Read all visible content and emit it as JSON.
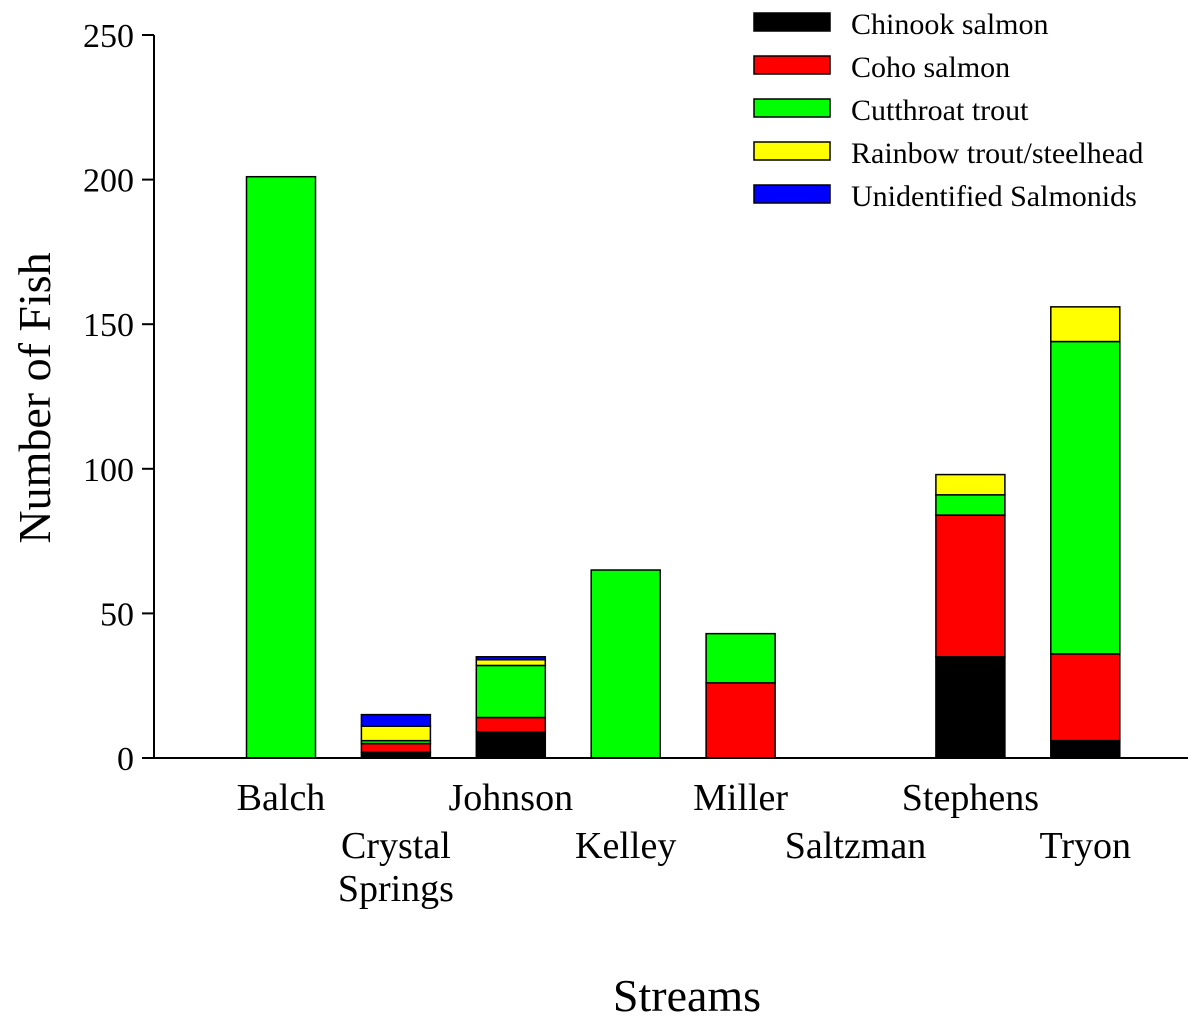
{
  "chart_data": {
    "type": "bar",
    "stacked": true,
    "xlabel": "Streams",
    "ylabel": "Number of Fish",
    "ylim": [
      0,
      250
    ],
    "yticks": [
      0,
      50,
      100,
      150,
      200,
      250
    ],
    "grid": false,
    "legend_position": "top-right",
    "categories": [
      "Balch",
      "Crystal Springs",
      "Johnson",
      "Kelley",
      "Miller",
      "Saltzman",
      "Stephens",
      "Tryon"
    ],
    "category_label_lines": [
      [
        "Balch"
      ],
      [
        "Crystal",
        "Springs"
      ],
      [
        "Johnson"
      ],
      [
        "Kelley"
      ],
      [
        "Miller"
      ],
      [
        "Saltzman"
      ],
      [
        "Stephens"
      ],
      [
        "Tryon"
      ]
    ],
    "category_label_row": [
      0,
      1,
      0,
      1,
      0,
      1,
      0,
      1
    ],
    "series": [
      {
        "name": "Chinook salmon",
        "color": "#000000",
        "values": [
          0,
          2,
          9,
          0,
          0,
          0,
          35,
          6
        ]
      },
      {
        "name": "Coho salmon",
        "color": "#ff0000",
        "values": [
          0,
          3,
          5,
          0,
          26,
          0,
          49,
          30
        ]
      },
      {
        "name": "Cutthroat trout",
        "color": "#00ff00",
        "values": [
          201,
          1,
          18,
          65,
          17,
          0,
          7,
          108
        ]
      },
      {
        "name": "Rainbow trout/steelhead",
        "color": "#ffff00",
        "values": [
          0,
          5,
          2,
          0,
          0,
          0,
          7,
          12
        ]
      },
      {
        "name": "Unidentified Salmonids",
        "color": "#0000ff",
        "values": [
          0,
          4,
          1,
          0,
          0,
          0,
          0,
          0
        ]
      }
    ]
  }
}
